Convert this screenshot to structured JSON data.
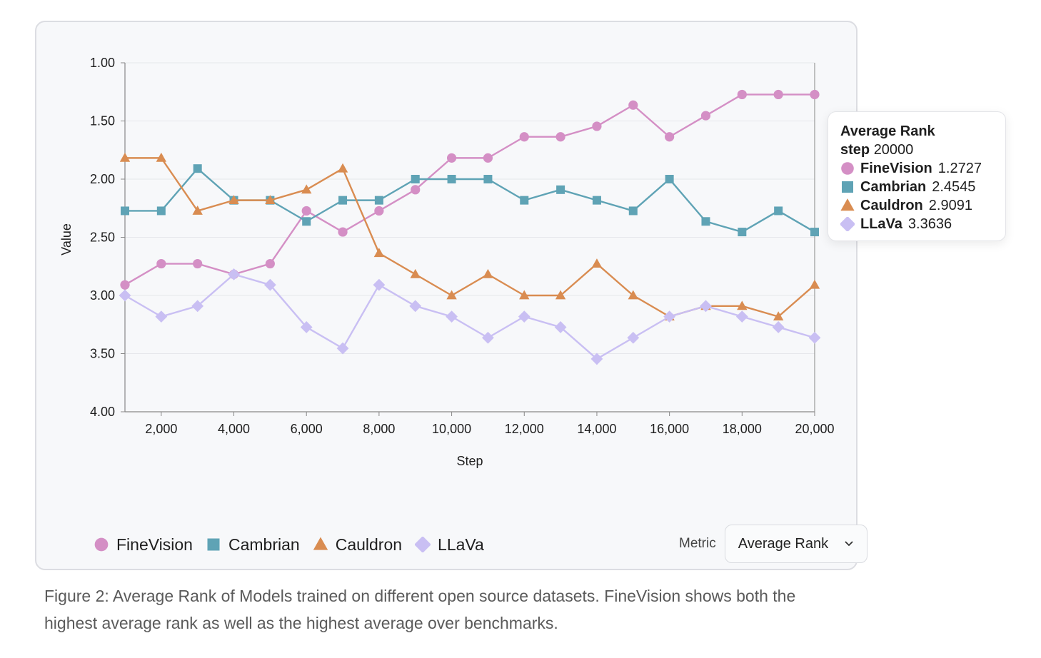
{
  "chart_data": {
    "type": "line",
    "ylabel": "Value",
    "xlabel": "Step",
    "ylim": [
      1.0,
      4.0
    ],
    "y_inverted": true,
    "xlim": [
      1000,
      20000
    ],
    "yticks": [
      1.0,
      1.5,
      2.0,
      2.5,
      3.0,
      3.5,
      4.0
    ],
    "ytick_labels": [
      "1.00",
      "1.50",
      "2.00",
      "2.50",
      "3.00",
      "3.50",
      "4.00"
    ],
    "xticks": [
      2000,
      4000,
      6000,
      8000,
      10000,
      12000,
      14000,
      16000,
      18000,
      20000
    ],
    "xtick_labels": [
      "2,000",
      "4,000",
      "6,000",
      "8,000",
      "10,000",
      "12,000",
      "14,000",
      "16,000",
      "18,000",
      "20,000"
    ],
    "x": [
      1000,
      2000,
      3000,
      4000,
      5000,
      6000,
      7000,
      8000,
      9000,
      10000,
      11000,
      12000,
      13000,
      14000,
      15000,
      16000,
      17000,
      18000,
      19000,
      20000
    ],
    "grid": true,
    "legend_position": "bottom-left",
    "series": [
      {
        "name": "FineVision",
        "color": "#d48fc5",
        "marker": "circle",
        "values": [
          2.9091,
          2.7273,
          2.7273,
          2.8182,
          2.7273,
          2.2727,
          2.4545,
          2.2727,
          2.0909,
          1.8182,
          1.8182,
          1.6364,
          1.6364,
          1.5455,
          1.3636,
          1.6364,
          1.4545,
          1.2727,
          1.2727,
          1.2727
        ]
      },
      {
        "name": "Cambrian",
        "color": "#5fa3b5",
        "marker": "square",
        "values": [
          2.2727,
          2.2727,
          1.9091,
          2.1818,
          2.1818,
          2.3636,
          2.1818,
          2.1818,
          2.0,
          2.0,
          2.0,
          2.1818,
          2.0909,
          2.1818,
          2.2727,
          2.0,
          2.3636,
          2.4545,
          2.2727,
          2.4545
        ]
      },
      {
        "name": "Cauldron",
        "color": "#d98c51",
        "marker": "triangle",
        "values": [
          1.8182,
          1.8182,
          2.2727,
          2.1818,
          2.1818,
          2.0909,
          1.9091,
          2.6364,
          2.8182,
          3.0,
          2.8182,
          3.0,
          3.0,
          2.7273,
          3.0,
          3.1818,
          3.0909,
          3.0909,
          3.1818,
          2.9091
        ]
      },
      {
        "name": "LLaVa",
        "color": "#c9bff3",
        "marker": "diamond",
        "values": [
          3.0,
          3.1818,
          3.0909,
          2.8182,
          2.9091,
          3.2727,
          3.4545,
          2.9091,
          3.0909,
          3.1818,
          3.3636,
          3.1818,
          3.2727,
          3.5455,
          3.3636,
          3.1818,
          3.0909,
          3.1818,
          3.2727,
          3.3636
        ]
      }
    ]
  },
  "legend": {
    "items": [
      {
        "label": "FineVision",
        "color": "#d48fc5",
        "marker": "circle"
      },
      {
        "label": "Cambrian",
        "color": "#5fa3b5",
        "marker": "square"
      },
      {
        "label": "Cauldron",
        "color": "#d98c51",
        "marker": "triangle"
      },
      {
        "label": "LLaVa",
        "color": "#c9bff3",
        "marker": "diamond"
      }
    ]
  },
  "controls": {
    "metric_label": "Metric",
    "metric_value": "Average Rank"
  },
  "tooltip": {
    "title": "Average Rank",
    "step_label": "step",
    "step_value": "20000",
    "rows": [
      {
        "name": "FineVision",
        "value": "1.2727",
        "color": "#d48fc5",
        "marker": "circle"
      },
      {
        "name": "Cambrian",
        "value": "2.4545",
        "color": "#5fa3b5",
        "marker": "square"
      },
      {
        "name": "Cauldron",
        "value": "2.9091",
        "color": "#d98c51",
        "marker": "triangle"
      },
      {
        "name": "LLaVa",
        "value": "3.3636",
        "color": "#c9bff3",
        "marker": "diamond"
      }
    ]
  },
  "caption": "Figure 2: Average Rank of Models trained on different open source datasets. FineVision shows both the highest average rank as well as the highest average over benchmarks."
}
